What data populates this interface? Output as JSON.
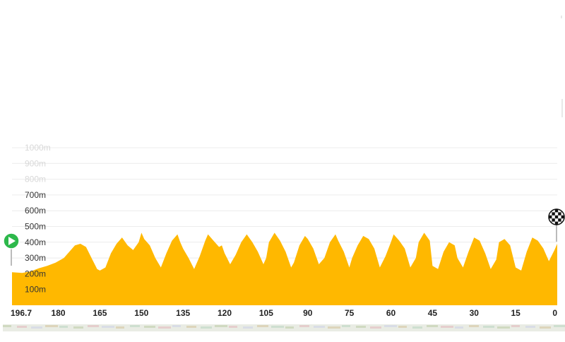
{
  "chart_data": {
    "type": "area",
    "title": "",
    "xlabel": "",
    "ylabel": "",
    "x_reversed": true,
    "xlim": [
      196.7,
      0
    ],
    "ylim": [
      0,
      1000
    ],
    "grid": true,
    "y_ticks": [
      {
        "value": 100,
        "label": "100m"
      },
      {
        "value": 200,
        "label": "200m"
      },
      {
        "value": 300,
        "label": "300m"
      },
      {
        "value": 400,
        "label": "400m"
      },
      {
        "value": 500,
        "label": "500m"
      },
      {
        "value": 600,
        "label": "600m"
      },
      {
        "value": 700,
        "label": "700m"
      },
      {
        "value": 800,
        "label": "800m"
      },
      {
        "value": 900,
        "label": "900m"
      },
      {
        "value": 1000,
        "label": "1000m"
      }
    ],
    "x_ticks": [
      {
        "value": 196.7,
        "label": "196.7"
      },
      {
        "value": 180,
        "label": "180"
      },
      {
        "value": 165,
        "label": "165"
      },
      {
        "value": 150,
        "label": "150"
      },
      {
        "value": 135,
        "label": "135"
      },
      {
        "value": 120,
        "label": "120"
      },
      {
        "value": 105,
        "label": "105"
      },
      {
        "value": 90,
        "label": "90"
      },
      {
        "value": 75,
        "label": "75"
      },
      {
        "value": 60,
        "label": "60"
      },
      {
        "value": 45,
        "label": "45"
      },
      {
        "value": 30,
        "label": "30"
      },
      {
        "value": 15,
        "label": "15"
      },
      {
        "value": 0,
        "label": "0"
      }
    ],
    "series": [
      {
        "color": "#ffb800",
        "x": [
          196.7,
          193,
          190,
          187,
          184,
          181,
          178,
          176,
          174,
          172,
          170,
          168,
          166,
          165,
          163,
          161,
          159,
          157,
          155,
          153,
          151,
          150,
          149,
          147,
          145,
          143,
          141,
          139,
          137,
          136,
          135,
          133,
          131,
          129,
          127,
          126,
          124,
          122,
          121,
          120,
          118,
          116,
          114,
          112,
          110,
          108,
          106,
          105,
          104,
          102,
          100,
          98,
          96,
          95,
          93,
          91,
          90,
          88,
          86,
          84,
          82,
          80,
          79,
          77,
          75,
          74,
          72,
          70,
          68,
          66,
          64,
          62,
          60,
          59,
          57,
          55,
          53,
          51,
          50,
          48,
          46,
          45,
          43,
          41,
          39,
          37,
          36,
          34,
          32,
          30,
          28,
          26,
          24,
          22,
          21,
          19,
          17,
          15,
          13,
          11,
          9,
          7,
          5,
          3,
          1,
          0
        ],
        "y": [
          210,
          205,
          215,
          235,
          250,
          270,
          300,
          340,
          380,
          390,
          370,
          300,
          230,
          220,
          240,
          330,
          390,
          430,
          380,
          350,
          400,
          460,
          420,
          380,
          300,
          240,
          330,
          410,
          450,
          400,
          360,
          300,
          230,
          310,
          410,
          450,
          410,
          370,
          380,
          330,
          260,
          320,
          400,
          450,
          400,
          340,
          260,
          300,
          400,
          460,
          410,
          340,
          240,
          270,
          380,
          440,
          420,
          360,
          260,
          300,
          400,
          450,
          410,
          340,
          240,
          300,
          380,
          440,
          420,
          360,
          240,
          310,
          400,
          450,
          410,
          360,
          240,
          300,
          400,
          460,
          410,
          250,
          230,
          340,
          400,
          380,
          300,
          240,
          340,
          430,
          410,
          330,
          230,
          290,
          400,
          420,
          380,
          240,
          220,
          340,
          430,
          410,
          360,
          280,
          350,
          390
        ]
      }
    ],
    "markers": {
      "start_icon": "play-icon",
      "finish_icon": "checkered-flag-icon"
    }
  },
  "colors": {
    "fill": "#ffb800",
    "start_green": "#2db84b",
    "ytick_dark": "#333333",
    "ytick_faded": "#d8d8d8",
    "grid": "#ececec"
  }
}
